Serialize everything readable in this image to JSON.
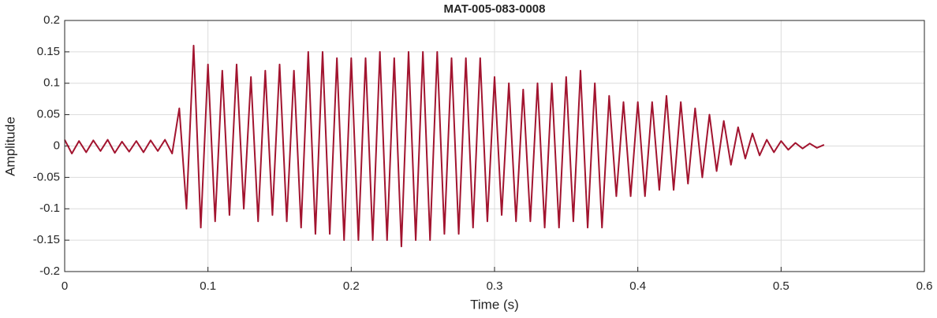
{
  "chart_data": {
    "type": "line",
    "title": "MAT-005-083-0008",
    "xlabel": "Time (s)",
    "ylabel": "Amplitude",
    "color": "#A2142F",
    "grid": true,
    "xlim": [
      0,
      0.6
    ],
    "xticks": [
      0,
      0.1,
      0.2,
      0.3,
      0.4,
      0.5,
      0.6
    ],
    "ylim": [
      -0.2,
      0.2
    ],
    "yticks": [
      -0.2,
      -0.15,
      -0.1,
      -0.05,
      0,
      0.05,
      0.1,
      0.15,
      0.2
    ],
    "x": [
      0,
      0.005,
      0.01,
      0.015,
      0.02,
      0.025,
      0.03,
      0.035,
      0.04,
      0.045,
      0.05,
      0.055,
      0.06,
      0.065,
      0.07,
      0.075,
      0.08,
      0.085,
      0.09,
      0.095,
      0.1,
      0.105,
      0.11,
      0.115,
      0.12,
      0.125,
      0.13,
      0.135,
      0.14,
      0.145,
      0.15,
      0.155,
      0.16,
      0.165,
      0.17,
      0.175,
      0.18,
      0.185,
      0.19,
      0.195,
      0.2,
      0.205,
      0.21,
      0.215,
      0.22,
      0.225,
      0.23,
      0.235,
      0.24,
      0.245,
      0.25,
      0.255,
      0.26,
      0.265,
      0.27,
      0.275,
      0.28,
      0.285,
      0.29,
      0.295,
      0.3,
      0.305,
      0.31,
      0.315,
      0.32,
      0.325,
      0.33,
      0.335,
      0.34,
      0.345,
      0.35,
      0.355,
      0.36,
      0.365,
      0.37,
      0.375,
      0.38,
      0.385,
      0.39,
      0.395,
      0.4,
      0.405,
      0.41,
      0.415,
      0.42,
      0.425,
      0.43,
      0.435,
      0.44,
      0.445,
      0.45,
      0.455,
      0.46,
      0.465,
      0.47,
      0.475,
      0.48,
      0.485,
      0.49,
      0.495,
      0.5,
      0.505,
      0.51,
      0.515,
      0.52,
      0.525,
      0.53
    ],
    "values": [
      0.01,
      -0.012,
      0.008,
      -0.01,
      0.009,
      -0.008,
      0.01,
      -0.011,
      0.007,
      -0.009,
      0.008,
      -0.01,
      0.009,
      -0.008,
      0.01,
      -0.012,
      0.06,
      -0.1,
      0.16,
      -0.13,
      0.13,
      -0.12,
      0.12,
      -0.11,
      0.13,
      -0.1,
      0.11,
      -0.12,
      0.12,
      -0.11,
      0.13,
      -0.12,
      0.12,
      -0.13,
      0.15,
      -0.14,
      0.15,
      -0.14,
      0.14,
      -0.15,
      0.14,
      -0.15,
      0.14,
      -0.15,
      0.15,
      -0.15,
      0.14,
      -0.16,
      0.15,
      -0.15,
      0.15,
      -0.15,
      0.15,
      -0.14,
      0.14,
      -0.14,
      0.14,
      -0.13,
      0.14,
      -0.12,
      0.11,
      -0.11,
      0.1,
      -0.12,
      0.09,
      -0.12,
      0.1,
      -0.13,
      0.1,
      -0.13,
      0.11,
      -0.12,
      0.12,
      -0.13,
      0.1,
      -0.13,
      0.08,
      -0.08,
      0.07,
      -0.08,
      0.07,
      -0.08,
      0.07,
      -0.07,
      0.08,
      -0.07,
      0.07,
      -0.06,
      0.06,
      -0.05,
      0.05,
      -0.04,
      0.04,
      -0.03,
      0.03,
      -0.02,
      0.02,
      -0.015,
      0.01,
      -0.01,
      0.008,
      -0.006,
      0.005,
      -0.004,
      0.004,
      -0.003,
      0.002
    ]
  }
}
